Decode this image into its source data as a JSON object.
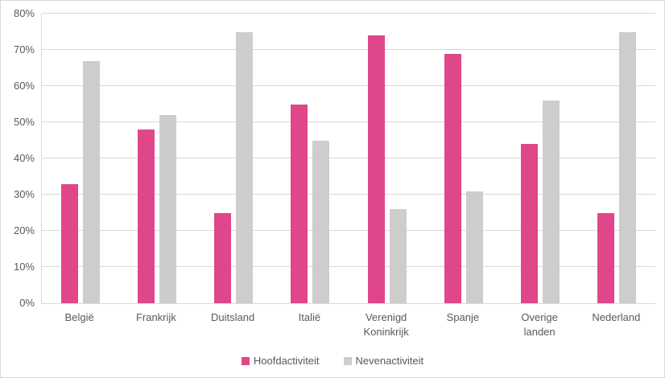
{
  "chart_data": {
    "type": "bar",
    "title": "",
    "categories": [
      "België",
      "Frankrijk",
      "Duitsland",
      "Italië",
      "Verenigd Koninkrijk",
      "Spanje",
      "Overige landen",
      "Nederland"
    ],
    "series": [
      {
        "name": "Hoofdactiviteit",
        "color": "#e0468a",
        "values": [
          33,
          48,
          25,
          55,
          74,
          69,
          44,
          25
        ]
      },
      {
        "name": "Nevenactiviteit",
        "color": "#cdcdcd",
        "values": [
          67,
          52,
          75,
          45,
          26,
          31,
          56,
          75
        ]
      }
    ],
    "y_axis": {
      "min": 0,
      "max": 80,
      "step": 10,
      "ticks": [
        "0%",
        "10%",
        "20%",
        "30%",
        "40%",
        "50%",
        "60%",
        "70%",
        "80%"
      ]
    },
    "xlabel": "",
    "ylabel": "",
    "grid": "horizontal",
    "legend_position": "bottom",
    "colors": {
      "grid_line": "#d9d9d9",
      "axis_line": "#d9d9d9",
      "axis_text": "#595959",
      "background": "#ffffff",
      "border": "#d9d9d9"
    }
  }
}
